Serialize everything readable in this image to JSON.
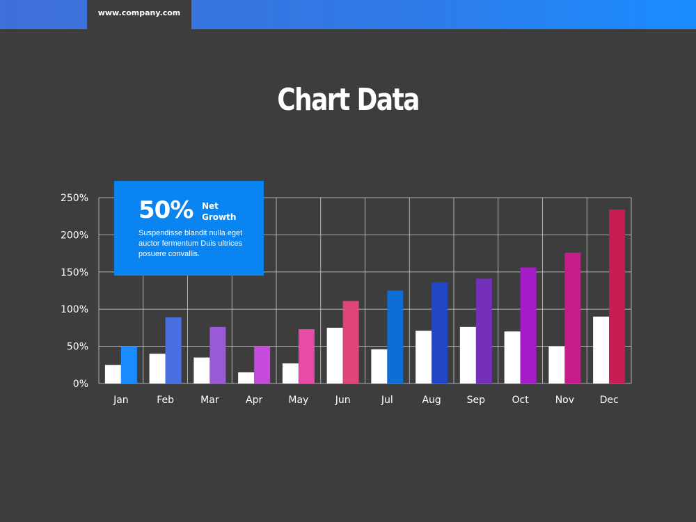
{
  "header": {
    "url": "www.company.com"
  },
  "title": "Chart Data",
  "callout": {
    "value": "50%",
    "label": "Net Growth",
    "description": "Suspendisse blandit nulla eget auctor fermentum Duis ultrices posuere convallis."
  },
  "chart_data": {
    "type": "bar",
    "categories": [
      "Jan",
      "Feb",
      "Mar",
      "Apr",
      "May",
      "Jun",
      "Jul",
      "Aug",
      "Sep",
      "Oct",
      "Nov",
      "Dec"
    ],
    "series": [
      {
        "values": [
          25,
          40,
          35,
          15,
          27,
          75,
          46,
          71,
          76,
          70,
          50,
          90
        ],
        "colors": [
          "#ffffff"
        ]
      },
      {
        "values": [
          50,
          89,
          76,
          50,
          73,
          111,
          125,
          136,
          141,
          156,
          176,
          234
        ],
        "colors": [
          "#1a8cff",
          "#4a6fe0",
          "#9a5ad8",
          "#c44bdc",
          "#e84aa8",
          "#e0457a",
          "#0d6ed6",
          "#2247c4",
          "#7430b8",
          "#a41cc8",
          "#c81b8c",
          "#c81d52"
        ]
      }
    ],
    "ylim": [
      0,
      250
    ],
    "yticks": [
      0,
      50,
      100,
      150,
      200,
      250
    ],
    "ytick_labels": [
      "0%",
      "50%",
      "100%",
      "150%",
      "200%",
      "250%"
    ],
    "grid": true
  }
}
